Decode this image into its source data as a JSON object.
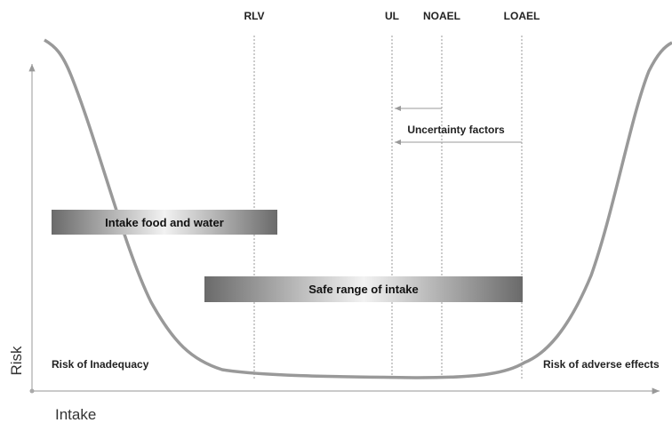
{
  "diagram": {
    "markers": [
      "RLV",
      "UL",
      "NOAEL",
      "LOAEL"
    ],
    "uncertainty_label": "Uncertainty factors",
    "bars": [
      "Intake food and water",
      "Safe range of intake"
    ],
    "regions": [
      "Risk of Inadequacy",
      "Risk of adverse effects"
    ],
    "y_axis_label": "Risk",
    "x_axis_label": "Intake"
  }
}
